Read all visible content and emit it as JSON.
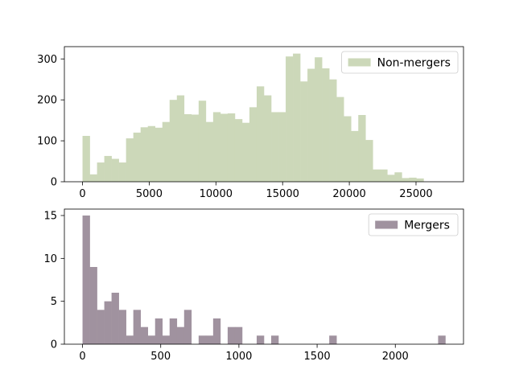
{
  "chart_data": [
    {
      "type": "histogram",
      "legend": "Non-mergers",
      "legend_position": "top-right",
      "color": "#ccd8b9",
      "grid": false,
      "xlim": [
        -1360,
        28560
      ],
      "ylim": [
        0,
        330
      ],
      "xticks": [
        0,
        5000,
        10000,
        15000,
        20000,
        25000
      ],
      "yticks": [
        0,
        100,
        200,
        300
      ],
      "bin_start": 0,
      "bin_width": 544,
      "counts": [
        112,
        18,
        47,
        63,
        56,
        47,
        106,
        120,
        133,
        136,
        132,
        146,
        200,
        211,
        165,
        164,
        198,
        146,
        170,
        166,
        167,
        153,
        144,
        182,
        233,
        211,
        170,
        170,
        306,
        313,
        245,
        276,
        304,
        277,
        250,
        207,
        160,
        124,
        163,
        102,
        30,
        30,
        17,
        23,
        9,
        10,
        8,
        0,
        0,
        0
      ]
    },
    {
      "type": "histogram",
      "legend": "Mergers",
      "legend_position": "top-right",
      "color": "#a0929f",
      "grid": false,
      "xlim": [
        -116,
        2436
      ],
      "ylim": [
        0,
        15.75
      ],
      "xticks": [
        0,
        500,
        1000,
        1500,
        2000
      ],
      "yticks": [
        0,
        5,
        10,
        15
      ],
      "bin_start": 0,
      "bin_width": 46.4,
      "counts": [
        15,
        9,
        4,
        5,
        6,
        4,
        1,
        4,
        2,
        1,
        3,
        1,
        3,
        2,
        4,
        0,
        1,
        1,
        3,
        0,
        2,
        2,
        0,
        0,
        1,
        0,
        1,
        0,
        0,
        0,
        0,
        0,
        0,
        0,
        1,
        0,
        0,
        0,
        0,
        0,
        0,
        0,
        0,
        0,
        0,
        0,
        0,
        0,
        0,
        1
      ]
    }
  ]
}
